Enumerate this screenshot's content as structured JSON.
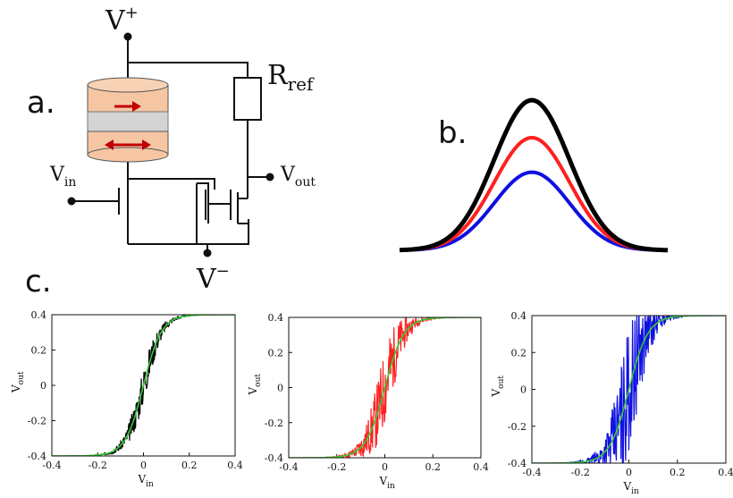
{
  "panel_labels": {
    "a": "a.",
    "b": "b.",
    "c": "c."
  },
  "circuit": {
    "v_plus": "V",
    "v_plus_sup": "+",
    "v_minus": "V",
    "v_minus_sup": "−",
    "r_ref": "R",
    "r_ref_sub": "ref",
    "v_in": "V",
    "v_in_sub": "in",
    "v_out": "V",
    "v_out_sub": "out"
  },
  "colors": {
    "black": "#000000",
    "red": "#ff2020",
    "blue": "#1010e0",
    "green": "#33cc33",
    "mtj_layer": "#f6c6a4",
    "mtj_barrier": "#d4d4d4",
    "arrow": "#c00000"
  },
  "chart_data": [
    {
      "type": "line",
      "xlabel": "V",
      "xlabel_sub": "in",
      "ylabel": "V",
      "ylabel_sub": "out",
      "xlim": [
        -0.4,
        0.4
      ],
      "ylim": [
        -0.4,
        0.4
      ],
      "x_ticks": [
        "-0.4",
        "-0.2",
        "0",
        "0.2",
        "0.4"
      ],
      "y_ticks": [
        "0.4",
        "0.2",
        "0",
        "-0.2",
        "-0.4"
      ],
      "series": [
        {
          "kind": "noisy",
          "color": "#000000",
          "noise": 0.1,
          "steepness": 28,
          "seed": 3
        },
        {
          "kind": "fit",
          "color": "#33cc33",
          "steepness": 28
        }
      ]
    },
    {
      "type": "line",
      "xlabel": "V",
      "xlabel_sub": "in",
      "ylabel": "V",
      "ylabel_sub": "out",
      "xlim": [
        -0.4,
        0.4
      ],
      "ylim": [
        -0.4,
        0.4
      ],
      "x_ticks": [
        "-0.4",
        "-0.2",
        "0",
        "0.2",
        "0.4"
      ],
      "y_ticks": [
        "0.4",
        "0.2",
        "0",
        "-0.2",
        "-0.4"
      ],
      "series": [
        {
          "kind": "noisy",
          "color": "#ff2020",
          "noise": 0.22,
          "steepness": 28,
          "seed": 11
        },
        {
          "kind": "fit",
          "color": "#33cc33",
          "steepness": 28
        }
      ]
    },
    {
      "type": "line",
      "xlabel": "V",
      "xlabel_sub": "in",
      "ylabel": "V",
      "ylabel_sub": "out",
      "xlim": [
        -0.4,
        0.4
      ],
      "ylim": [
        -0.4,
        0.4
      ],
      "x_ticks": [
        "-0.4",
        "-0.2",
        "0",
        "0.2",
        "0.4"
      ],
      "y_ticks": [
        "0.4",
        "0.2",
        "0",
        "-0.2",
        "-0.4"
      ],
      "series": [
        {
          "kind": "noisy",
          "color": "#1010e0",
          "noise": 0.34,
          "steepness": 28,
          "seed": 29
        },
        {
          "kind": "fit",
          "color": "#33cc33",
          "steepness": 28
        }
      ]
    }
  ],
  "gaussians": {
    "curves": [
      {
        "color": "#1010e0",
        "height": 0.52
      },
      {
        "color": "#ff2020",
        "height": 0.75
      },
      {
        "color": "#000000",
        "height": 1.0
      }
    ]
  }
}
